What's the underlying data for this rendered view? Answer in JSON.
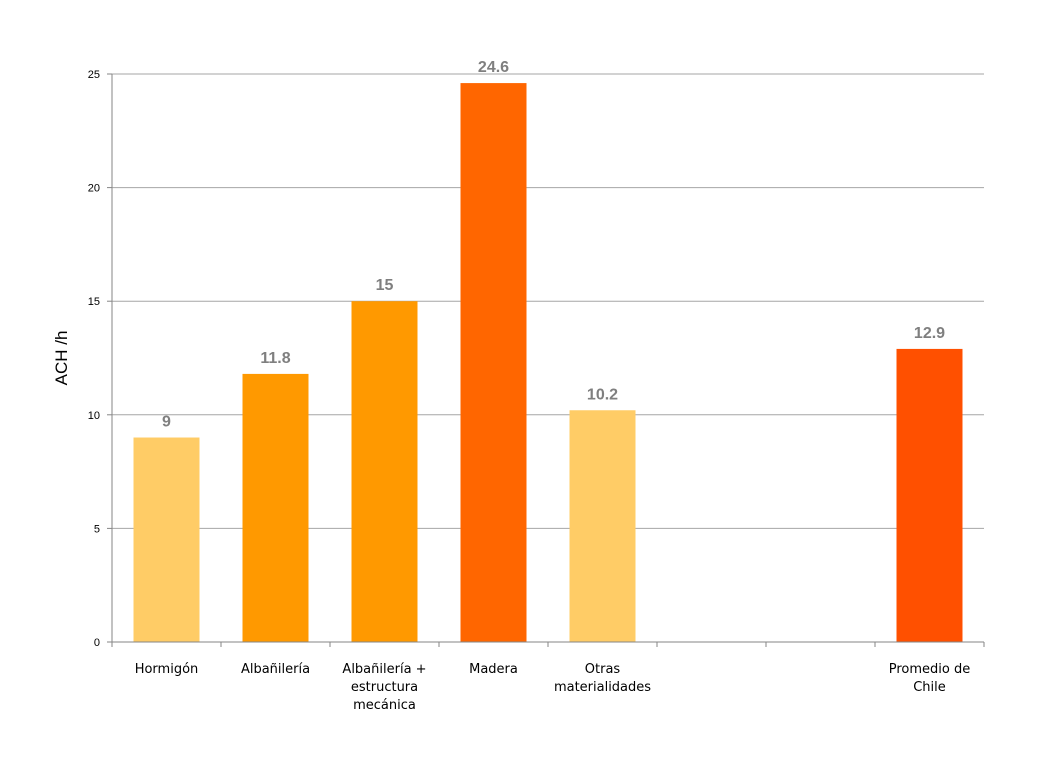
{
  "chart_data": {
    "type": "bar",
    "title": "",
    "xlabel": "",
    "ylabel": "ACH /h",
    "ylim": [
      0,
      25
    ],
    "yticks": [
      0,
      5,
      10,
      15,
      20,
      25
    ],
    "grid": true,
    "categories": [
      [
        "Hormigón"
      ],
      [
        "Albañilería"
      ],
      [
        "Albañilería +",
        "estructura",
        "mecánica"
      ],
      [
        "Madera"
      ],
      [
        "Otras",
        "materialidades"
      ],
      [
        ""
      ],
      [
        ""
      ],
      [
        "Promedio de",
        "Chile"
      ]
    ],
    "values": [
      9,
      11.8,
      15,
      24.6,
      10.2,
      null,
      null,
      12.9
    ],
    "value_labels": [
      "9",
      "11.8",
      "15",
      "24.6",
      "10.2",
      "",
      "",
      "12.9"
    ],
    "colors": [
      "#ffcc66",
      "#ff9900",
      "#ff9900",
      "#ff6600",
      "#ffcc66",
      "",
      "",
      "#ff5000"
    ]
  }
}
